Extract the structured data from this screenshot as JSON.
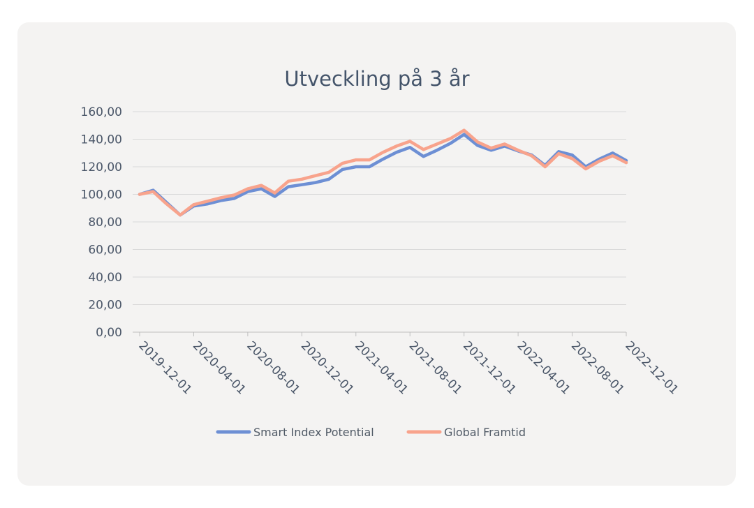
{
  "chart_data": {
    "type": "line",
    "title": "Utveckling på 3 år",
    "xlabel": "",
    "ylabel": "",
    "ylim": [
      0,
      160
    ],
    "yticks": [
      "0,00",
      "20,00",
      "40,00",
      "60,00",
      "80,00",
      "100,00",
      "120,00",
      "140,00",
      "160,00"
    ],
    "xticks": [
      "2019-12-01",
      "2020-04-01",
      "2020-08-01",
      "2020-12-01",
      "2021-04-01",
      "2021-08-01",
      "2021-12-01",
      "2022-04-01",
      "2022-08-01",
      "2022-12-01"
    ],
    "x": [
      "2019-12-01",
      "2020-01-01",
      "2020-02-01",
      "2020-03-01",
      "2020-04-01",
      "2020-05-01",
      "2020-06-01",
      "2020-07-01",
      "2020-08-01",
      "2020-09-01",
      "2020-10-01",
      "2020-11-01",
      "2020-12-01",
      "2021-01-01",
      "2021-02-01",
      "2021-03-01",
      "2021-04-01",
      "2021-05-01",
      "2021-06-01",
      "2021-07-01",
      "2021-08-01",
      "2021-09-01",
      "2021-10-01",
      "2021-11-01",
      "2021-12-01",
      "2022-01-01",
      "2022-02-01",
      "2022-03-01",
      "2022-04-01",
      "2022-05-01",
      "2022-06-01",
      "2022-07-01",
      "2022-08-01",
      "2022-09-01",
      "2022-10-01",
      "2022-11-01",
      "2022-12-01"
    ],
    "series": [
      {
        "name": "Smart Index Potential",
        "color": "#6d8fd4",
        "values": [
          100.0,
          103.0,
          94.0,
          85.0,
          91.5,
          93.0,
          95.5,
          97.0,
          102.0,
          104.0,
          98.5,
          105.5,
          107.0,
          108.5,
          111.0,
          118.0,
          120.0,
          120.0,
          125.5,
          130.5,
          134.0,
          127.5,
          132.0,
          137.0,
          143.5,
          135.5,
          132.0,
          135.0,
          131.5,
          128.5,
          121.0,
          131.0,
          128.5,
          120.0,
          125.5,
          130.0,
          124.5
        ]
      },
      {
        "name": "Global Framtid",
        "color": "#f8a38c",
        "values": [
          100.0,
          102.0,
          93.0,
          85.0,
          92.5,
          95.0,
          97.5,
          99.5,
          104.0,
          106.5,
          101.0,
          109.5,
          111.0,
          113.5,
          116.0,
          122.5,
          125.0,
          125.0,
          130.5,
          135.0,
          138.5,
          132.5,
          136.5,
          140.5,
          146.5,
          138.0,
          133.5,
          136.5,
          132.0,
          128.0,
          120.0,
          129.5,
          126.0,
          118.5,
          124.0,
          128.0,
          123.0
        ]
      }
    ],
    "legend": "bottom"
  }
}
